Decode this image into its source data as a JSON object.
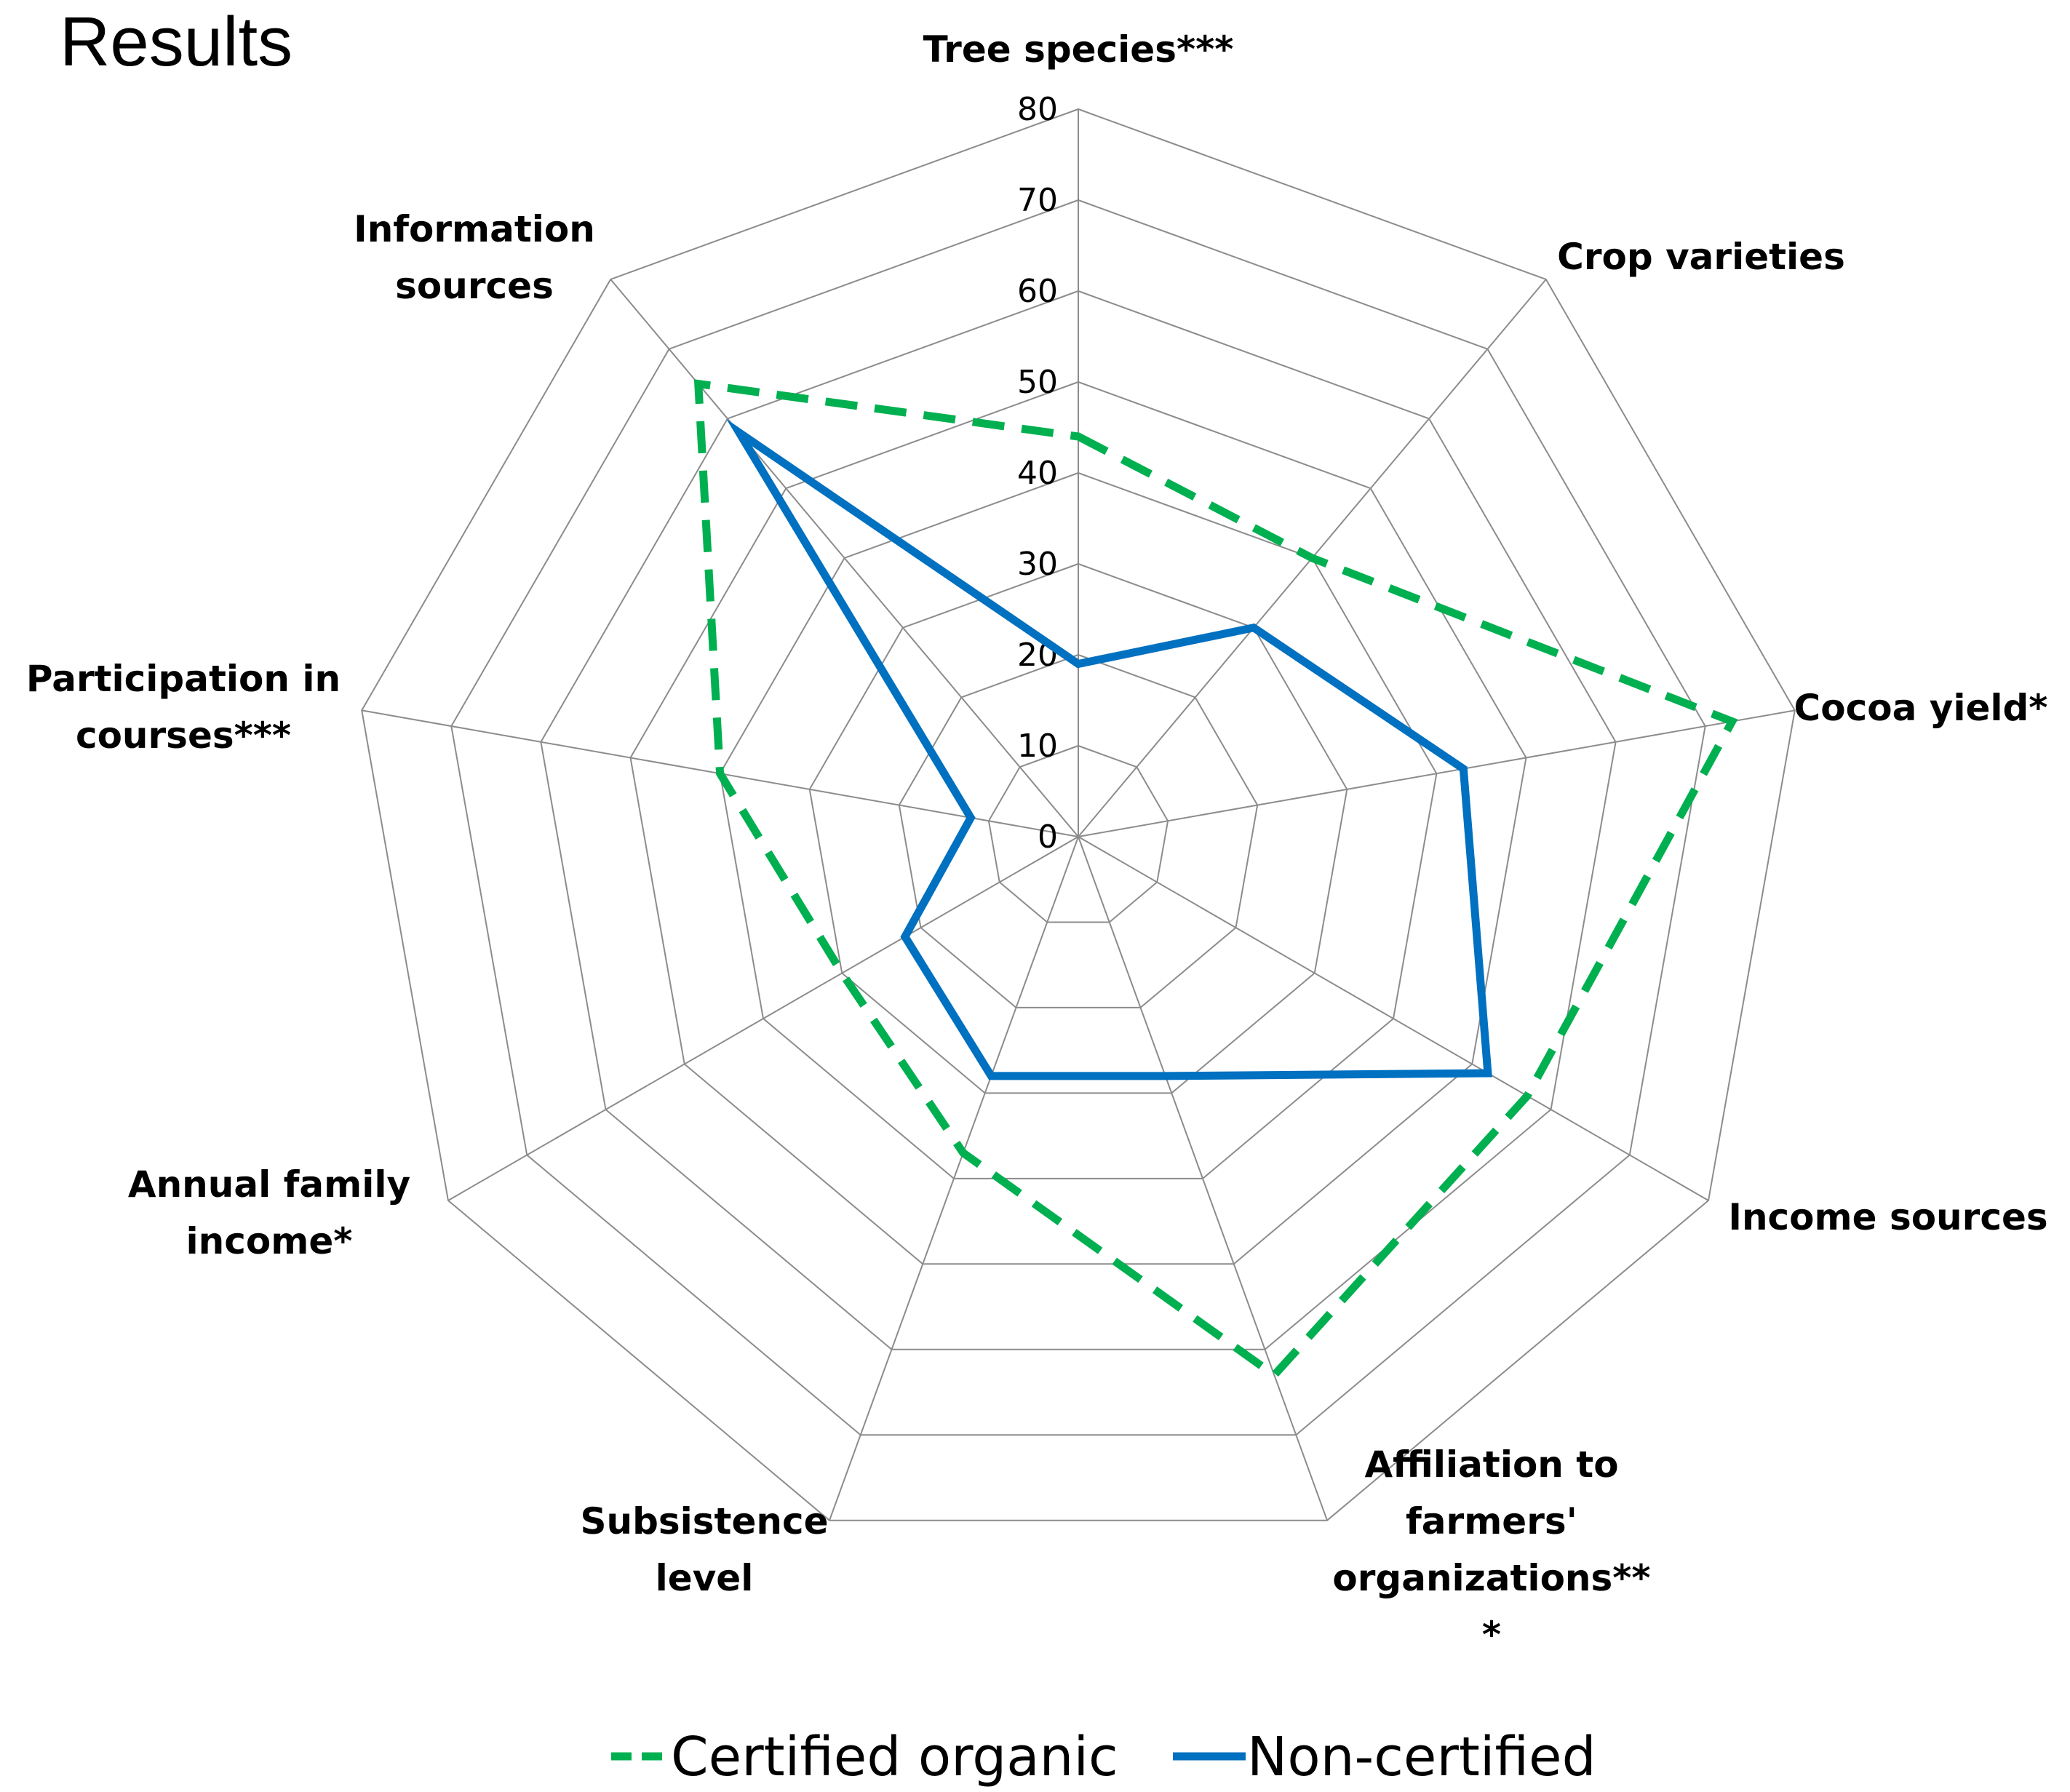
{
  "heading": "Results",
  "colors": {
    "certified": "#00b050",
    "noncertified": "#0070c0",
    "grid": "#8c8c8c"
  },
  "chart_data": {
    "type": "radar",
    "title": "",
    "categories": [
      "Tree species***",
      "Crop varieties",
      "Cocoa yield*",
      "Income sources",
      "Affiliation to farmers' organizations***",
      "Subsistence level",
      "Annual family income*",
      "Participation in courses***",
      "Information sources"
    ],
    "category_lines": [
      [
        "Tree species***"
      ],
      [
        "Crop varieties"
      ],
      [
        "Cocoa yield*"
      ],
      [
        "Income sources"
      ],
      [
        "Affiliation to",
        "farmers'",
        "organizations**",
        "*"
      ],
      [
        "Subsistence",
        "level"
      ],
      [
        "Annual family",
        "income*"
      ],
      [
        "Participation in",
        "courses***"
      ],
      [
        "Information",
        "sources"
      ]
    ],
    "ticks": [
      0,
      10,
      20,
      30,
      40,
      50,
      60,
      70,
      80
    ],
    "range": [
      0,
      80
    ],
    "grid": true,
    "legend_position": "bottom",
    "series": [
      {
        "name": "Certified organic",
        "values": [
          44,
          40,
          73,
          57,
          63,
          37,
          30,
          40,
          65
        ],
        "style": "dashed"
      },
      {
        "name": "Non-certified",
        "values": [
          19,
          30,
          43,
          52,
          28,
          28,
          22,
          12,
          58
        ],
        "style": "solid"
      }
    ]
  }
}
